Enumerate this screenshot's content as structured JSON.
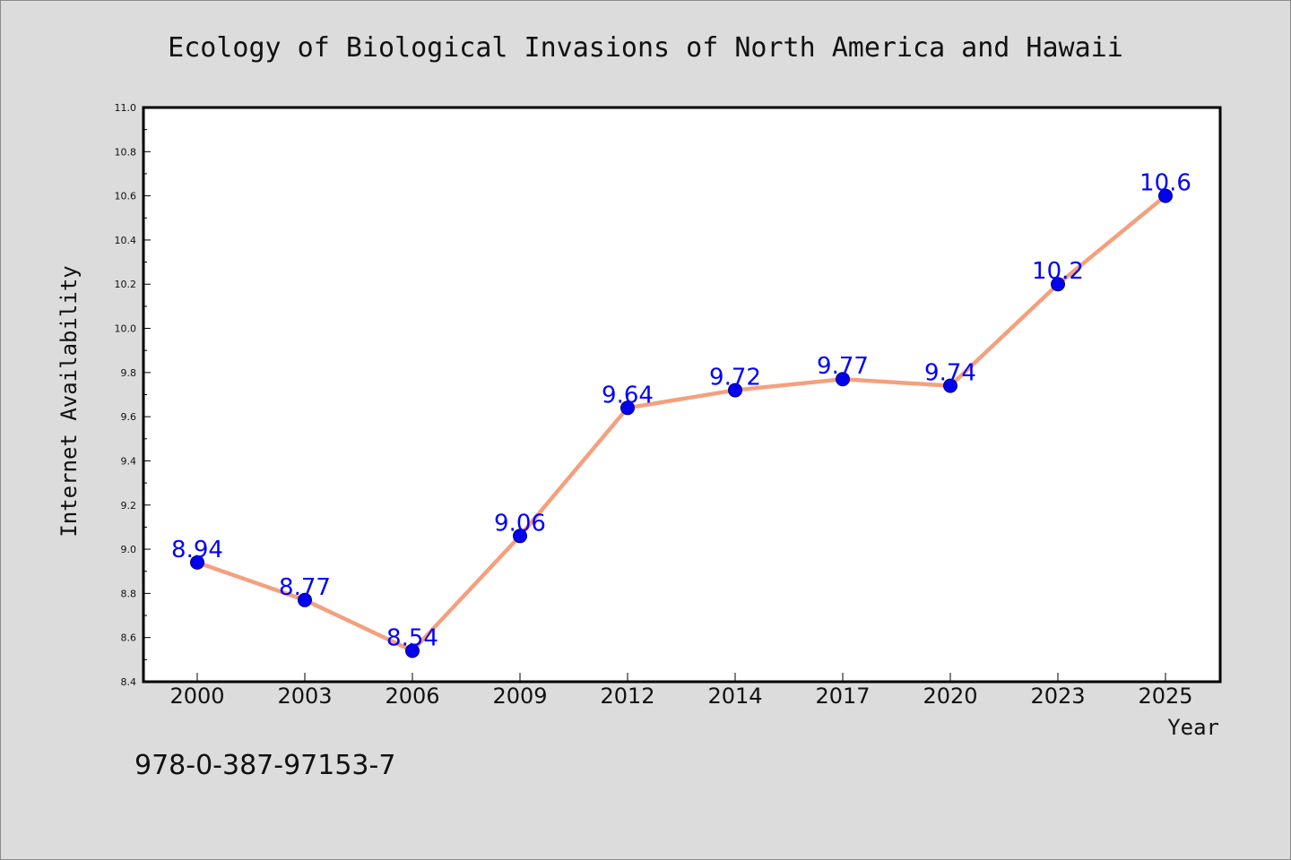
{
  "chart_data": {
    "type": "line",
    "title": "Ecology of Biological Invasions of North America and Hawaii",
    "xlabel": "Year",
    "ylabel": "Internet Availability",
    "categories": [
      "2000",
      "2003",
      "2006",
      "2009",
      "2012",
      "2014",
      "2017",
      "2020",
      "2023",
      "2025"
    ],
    "series": [
      {
        "values": [
          8.94,
          8.77,
          8.54,
          9.06,
          9.64,
          9.72,
          9.77,
          9.74,
          10.2,
          10.6
        ],
        "data_labels": [
          "8.94",
          "8.77",
          "8.54",
          "9.06",
          "9.64",
          "9.72",
          "9.77",
          "9.74",
          "10.2",
          "10.6"
        ],
        "line_color": "#f4a07e",
        "marker_color": "#0000ee"
      }
    ],
    "ylim": [
      8.4,
      11.0
    ],
    "yticks": [
      "8.4",
      "8.6",
      "8.8",
      "9.0",
      "9.2",
      "9.4",
      "9.6",
      "9.8",
      "10.0",
      "10.2",
      "10.4",
      "10.6",
      "10.8",
      "11.0"
    ],
    "grid": false,
    "label_color": "#0000ff"
  },
  "footer": {
    "isbn": "978-0-387-97153-7"
  },
  "colors": {
    "background": "#dcdcdc",
    "plot_background": "#ffffff"
  }
}
